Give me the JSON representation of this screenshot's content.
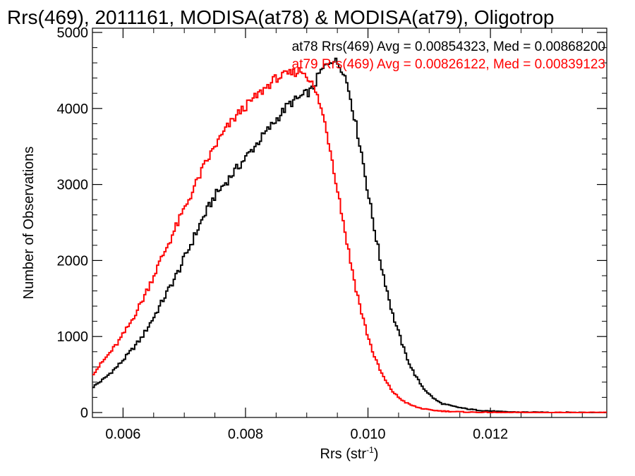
{
  "chart_data": {
    "type": "line",
    "title": "Rrs(469), 2011161, MODISA(at78) & MODISA(at79), Oligotrop",
    "xlabel": "Rrs (str",
    "xlabel_superscript": "-1",
    "xlabel_suffix": ")",
    "ylabel": "Number of Observations",
    "xlim": [
      0.0055,
      0.0139
    ],
    "ylim": [
      0,
      5000
    ],
    "x_ticks": [
      0.006,
      0.008,
      0.01,
      0.012
    ],
    "x_tick_labels": [
      "0.006",
      "0.008",
      "0.010",
      "0.012"
    ],
    "y_ticks": [
      0,
      1000,
      2000,
      3000,
      4000,
      5000
    ],
    "y_tick_labels": [
      "0",
      "1000",
      "2000",
      "3000",
      "4000",
      "5000"
    ],
    "step": true,
    "annotations": [
      {
        "text": "at78 Rrs(469) Avg = 0.00854323, Med = 0.00868200",
        "color": "#000000"
      },
      {
        "text": "at79 Rrs(469) Avg = 0.00826122, Med = 0.00839123",
        "color": "#ff0000"
      }
    ],
    "series": [
      {
        "name": "at78",
        "color": "#000000",
        "x": [
          0.0055,
          0.0057,
          0.0059,
          0.0061,
          0.0063,
          0.0065,
          0.0067,
          0.0069,
          0.0071,
          0.0073,
          0.0075,
          0.0077,
          0.0079,
          0.0081,
          0.0083,
          0.0085,
          0.0087,
          0.0089,
          0.0091,
          0.0092,
          0.0093,
          0.0094,
          0.0095,
          0.0096,
          0.0097,
          0.0098,
          0.0099,
          0.01,
          0.0101,
          0.0102,
          0.0103,
          0.0104,
          0.0105,
          0.0106,
          0.0107,
          0.0108,
          0.0109,
          0.011,
          0.0111,
          0.0112,
          0.0114,
          0.0116,
          0.0118,
          0.012,
          0.0122,
          0.0125,
          0.013,
          0.0139
        ],
        "y": [
          330,
          450,
          600,
          780,
          980,
          1250,
          1550,
          1850,
          2200,
          2550,
          2850,
          3050,
          3250,
          3450,
          3650,
          3850,
          4050,
          4150,
          4250,
          4450,
          4550,
          4650,
          4600,
          4500,
          4200,
          3800,
          3400,
          2900,
          2450,
          2000,
          1650,
          1300,
          1050,
          800,
          600,
          450,
          330,
          240,
          170,
          120,
          80,
          50,
          30,
          20,
          10,
          5,
          2,
          0
        ]
      },
      {
        "name": "at79",
        "color": "#ff0000",
        "x": [
          0.0055,
          0.0057,
          0.0059,
          0.0061,
          0.0063,
          0.0065,
          0.0067,
          0.0069,
          0.0071,
          0.0073,
          0.0075,
          0.0077,
          0.0079,
          0.0081,
          0.0083,
          0.0085,
          0.0087,
          0.0089,
          0.009,
          0.0091,
          0.0092,
          0.0093,
          0.0094,
          0.0095,
          0.0096,
          0.0097,
          0.0098,
          0.0099,
          0.01,
          0.0101,
          0.0102,
          0.0103,
          0.0104,
          0.0105,
          0.0106,
          0.0107,
          0.0108,
          0.0109,
          0.011,
          0.0112,
          0.0114,
          0.0116,
          0.0118,
          0.012,
          0.0123,
          0.013,
          0.0139
        ],
        "y": [
          500,
          700,
          900,
          1150,
          1450,
          1800,
          2150,
          2500,
          2850,
          3200,
          3500,
          3750,
          3950,
          4100,
          4250,
          4400,
          4450,
          4500,
          4450,
          4300,
          4100,
          3800,
          3400,
          2950,
          2500,
          2050,
          1650,
          1300,
          1000,
          750,
          550,
          400,
          280,
          200,
          140,
          100,
          70,
          50,
          35,
          20,
          12,
          6,
          3,
          1,
          0,
          0,
          0
        ]
      }
    ],
    "grid": false,
    "legend": "none"
  }
}
